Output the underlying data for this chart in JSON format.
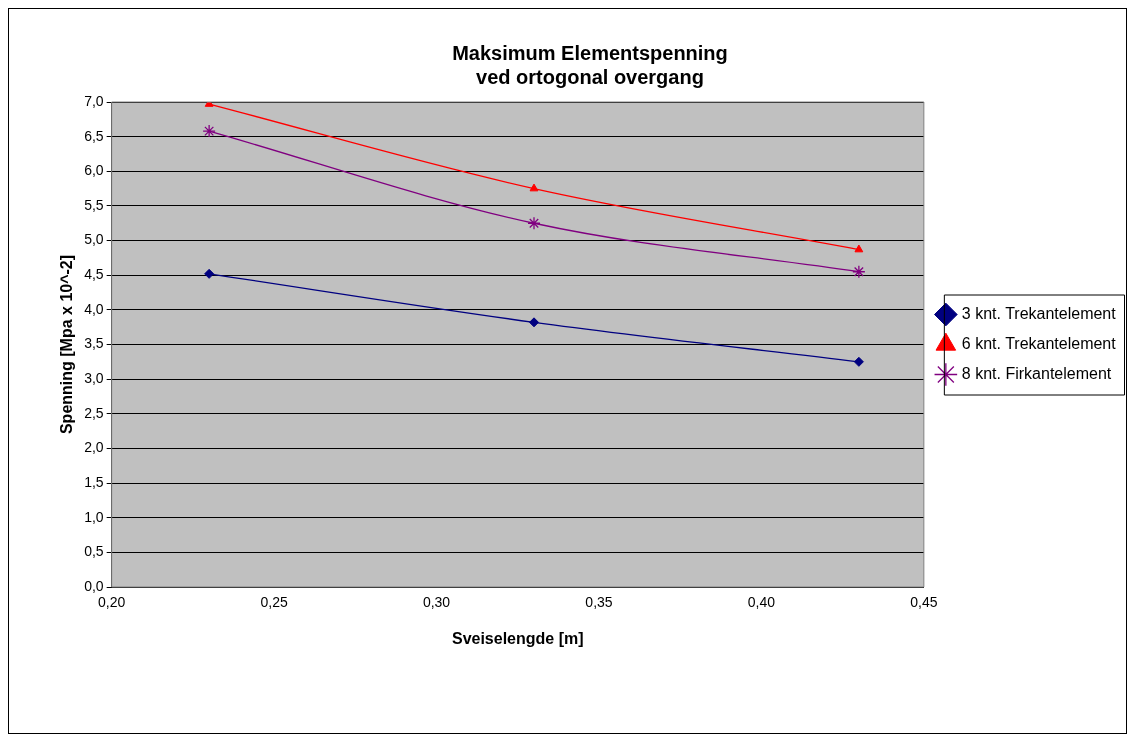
{
  "chart_data": {
    "type": "line",
    "title": "Maksimum Elementspenning\nved ortogonal overgang",
    "xlabel": "Sveiselengde [m]",
    "ylabel": "Spenning [Mpa x 10^-2]",
    "x": [
      0.23,
      0.33,
      0.43
    ],
    "series": [
      {
        "name": "3 knt. Trekantelement",
        "color": "#000080",
        "marker": "diamond",
        "values": [
          4.52,
          3.82,
          3.25
        ]
      },
      {
        "name": "6 knt. Trekantelement",
        "color": "#ff0000",
        "marker": "triangle",
        "values": [
          6.97,
          5.75,
          4.87
        ]
      },
      {
        "name": "8 knt. Firkantelement",
        "color": "#800080",
        "marker": "cross",
        "values": [
          6.58,
          5.25,
          4.55
        ]
      }
    ],
    "xlim": [
      0.2,
      0.45
    ],
    "xticks": [
      {
        "value": 0.2,
        "label": "0,20"
      },
      {
        "value": 0.25,
        "label": "0,25"
      },
      {
        "value": 0.3,
        "label": "0,30"
      },
      {
        "value": 0.35,
        "label": "0,35"
      },
      {
        "value": 0.4,
        "label": "0,40"
      },
      {
        "value": 0.45,
        "label": "0,45"
      }
    ],
    "ylim": [
      0,
      7
    ],
    "yticks": [
      {
        "value": 0,
        "label": "0,0"
      },
      {
        "value": 0.5,
        "label": "0,5"
      },
      {
        "value": 1,
        "label": "1,0"
      },
      {
        "value": 1.5,
        "label": "1,5"
      },
      {
        "value": 2,
        "label": "2,0"
      },
      {
        "value": 2.5,
        "label": "2,5"
      },
      {
        "value": 3,
        "label": "3,0"
      },
      {
        "value": 3.5,
        "label": "3,5"
      },
      {
        "value": 4,
        "label": "4,0"
      },
      {
        "value": 4.5,
        "label": "4,5"
      },
      {
        "value": 5,
        "label": "5,0"
      },
      {
        "value": 5.5,
        "label": "5,5"
      },
      {
        "value": 6,
        "label": "6,0"
      },
      {
        "value": 6.5,
        "label": "6,5"
      },
      {
        "value": 7,
        "label": "7,0"
      }
    ],
    "grid": "y",
    "legend": "right",
    "line_style": "solid"
  }
}
